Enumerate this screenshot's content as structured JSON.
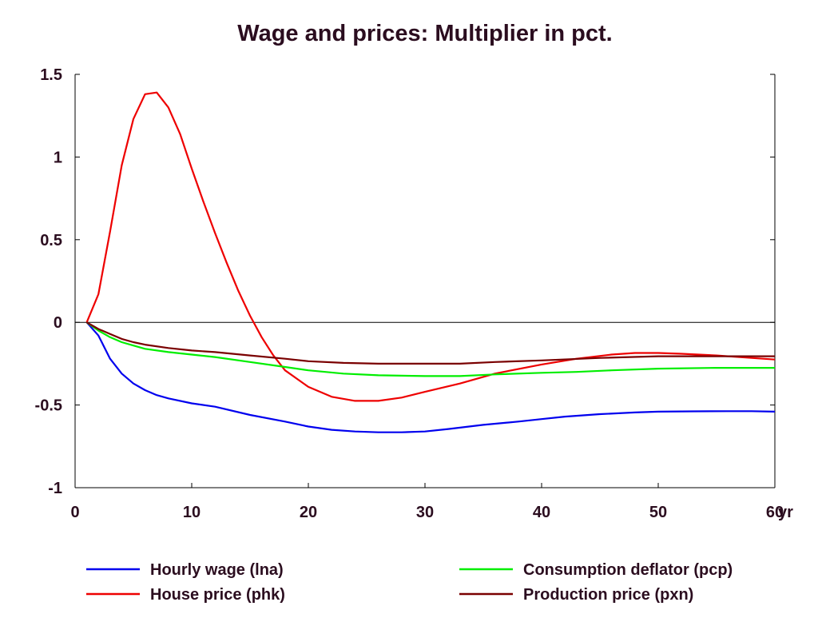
{
  "chart_data": {
    "type": "line",
    "title": "Wage and prices: Multiplier in pct.",
    "xlabel": "",
    "ylabel": "",
    "x_unit_label": "yr",
    "xlim": [
      0,
      60
    ],
    "ylim": [
      -1,
      1.5
    ],
    "x_ticks": [
      0,
      10,
      20,
      30,
      40,
      50,
      60
    ],
    "x_tick_labels": [
      "0",
      "10",
      "20",
      "30",
      "40",
      "50",
      "60"
    ],
    "y_ticks": [
      1.5,
      1,
      0.5,
      0,
      -0.5,
      -1
    ],
    "y_tick_labels": [
      "1.5",
      "1",
      "0.5",
      "0",
      "-0.5",
      "-1"
    ],
    "grid": false,
    "zero_line": true,
    "legend_position": "bottom",
    "series": [
      {
        "name": "Hourly wage (lna)",
        "color": "#0000ee",
        "points": [
          [
            1,
            0
          ],
          [
            2,
            -0.08
          ],
          [
            3,
            -0.22
          ],
          [
            4,
            -0.31
          ],
          [
            5,
            -0.37
          ],
          [
            6,
            -0.41
          ],
          [
            7,
            -0.44
          ],
          [
            8,
            -0.46
          ],
          [
            10,
            -0.49
          ],
          [
            12,
            -0.51
          ],
          [
            15,
            -0.56
          ],
          [
            18,
            -0.6
          ],
          [
            20,
            -0.63
          ],
          [
            22,
            -0.65
          ],
          [
            24,
            -0.66
          ],
          [
            26,
            -0.665
          ],
          [
            28,
            -0.665
          ],
          [
            30,
            -0.66
          ],
          [
            32,
            -0.645
          ],
          [
            35,
            -0.62
          ],
          [
            38,
            -0.6
          ],
          [
            40,
            -0.585
          ],
          [
            42,
            -0.57
          ],
          [
            45,
            -0.555
          ],
          [
            48,
            -0.545
          ],
          [
            50,
            -0.54
          ],
          [
            53,
            -0.538
          ],
          [
            56,
            -0.537
          ],
          [
            58,
            -0.537
          ],
          [
            60,
            -0.54
          ]
        ]
      },
      {
        "name": "House price (phk)",
        "color": "#ee0000",
        "points": [
          [
            1,
            0
          ],
          [
            2,
            0.17
          ],
          [
            3,
            0.55
          ],
          [
            4,
            0.95
          ],
          [
            5,
            1.23
          ],
          [
            6,
            1.38
          ],
          [
            7,
            1.39
          ],
          [
            8,
            1.3
          ],
          [
            9,
            1.14
          ],
          [
            10,
            0.93
          ],
          [
            11,
            0.73
          ],
          [
            12,
            0.54
          ],
          [
            13,
            0.36
          ],
          [
            14,
            0.19
          ],
          [
            15,
            0.04
          ],
          [
            16,
            -0.09
          ],
          [
            17,
            -0.2
          ],
          [
            18,
            -0.29
          ],
          [
            20,
            -0.39
          ],
          [
            22,
            -0.45
          ],
          [
            24,
            -0.475
          ],
          [
            26,
            -0.475
          ],
          [
            28,
            -0.455
          ],
          [
            30,
            -0.42
          ],
          [
            33,
            -0.37
          ],
          [
            36,
            -0.31
          ],
          [
            40,
            -0.255
          ],
          [
            43,
            -0.22
          ],
          [
            46,
            -0.195
          ],
          [
            48,
            -0.185
          ],
          [
            50,
            -0.185
          ],
          [
            52,
            -0.19
          ],
          [
            55,
            -0.2
          ],
          [
            58,
            -0.215
          ],
          [
            60,
            -0.225
          ]
        ]
      },
      {
        "name": "Consumption deflator (pcp)",
        "color": "#00ee00",
        "points": [
          [
            1,
            0
          ],
          [
            2,
            -0.05
          ],
          [
            3,
            -0.09
          ],
          [
            4,
            -0.12
          ],
          [
            5,
            -0.14
          ],
          [
            6,
            -0.16
          ],
          [
            8,
            -0.18
          ],
          [
            10,
            -0.195
          ],
          [
            12,
            -0.21
          ],
          [
            15,
            -0.24
          ],
          [
            18,
            -0.27
          ],
          [
            20,
            -0.29
          ],
          [
            23,
            -0.31
          ],
          [
            26,
            -0.32
          ],
          [
            30,
            -0.325
          ],
          [
            33,
            -0.325
          ],
          [
            36,
            -0.315
          ],
          [
            40,
            -0.305
          ],
          [
            43,
            -0.3
          ],
          [
            46,
            -0.29
          ],
          [
            50,
            -0.28
          ],
          [
            55,
            -0.275
          ],
          [
            60,
            -0.275
          ]
        ]
      },
      {
        "name": "Production price (pxn)",
        "color": "#7a0000",
        "points": [
          [
            1,
            0
          ],
          [
            2,
            -0.04
          ],
          [
            3,
            -0.07
          ],
          [
            4,
            -0.1
          ],
          [
            5,
            -0.12
          ],
          [
            6,
            -0.135
          ],
          [
            8,
            -0.155
          ],
          [
            10,
            -0.17
          ],
          [
            12,
            -0.18
          ],
          [
            15,
            -0.2
          ],
          [
            18,
            -0.22
          ],
          [
            20,
            -0.235
          ],
          [
            23,
            -0.245
          ],
          [
            26,
            -0.25
          ],
          [
            30,
            -0.25
          ],
          [
            33,
            -0.25
          ],
          [
            36,
            -0.24
          ],
          [
            40,
            -0.23
          ],
          [
            45,
            -0.215
          ],
          [
            50,
            -0.205
          ],
          [
            55,
            -0.205
          ],
          [
            60,
            -0.205
          ]
        ]
      }
    ]
  }
}
